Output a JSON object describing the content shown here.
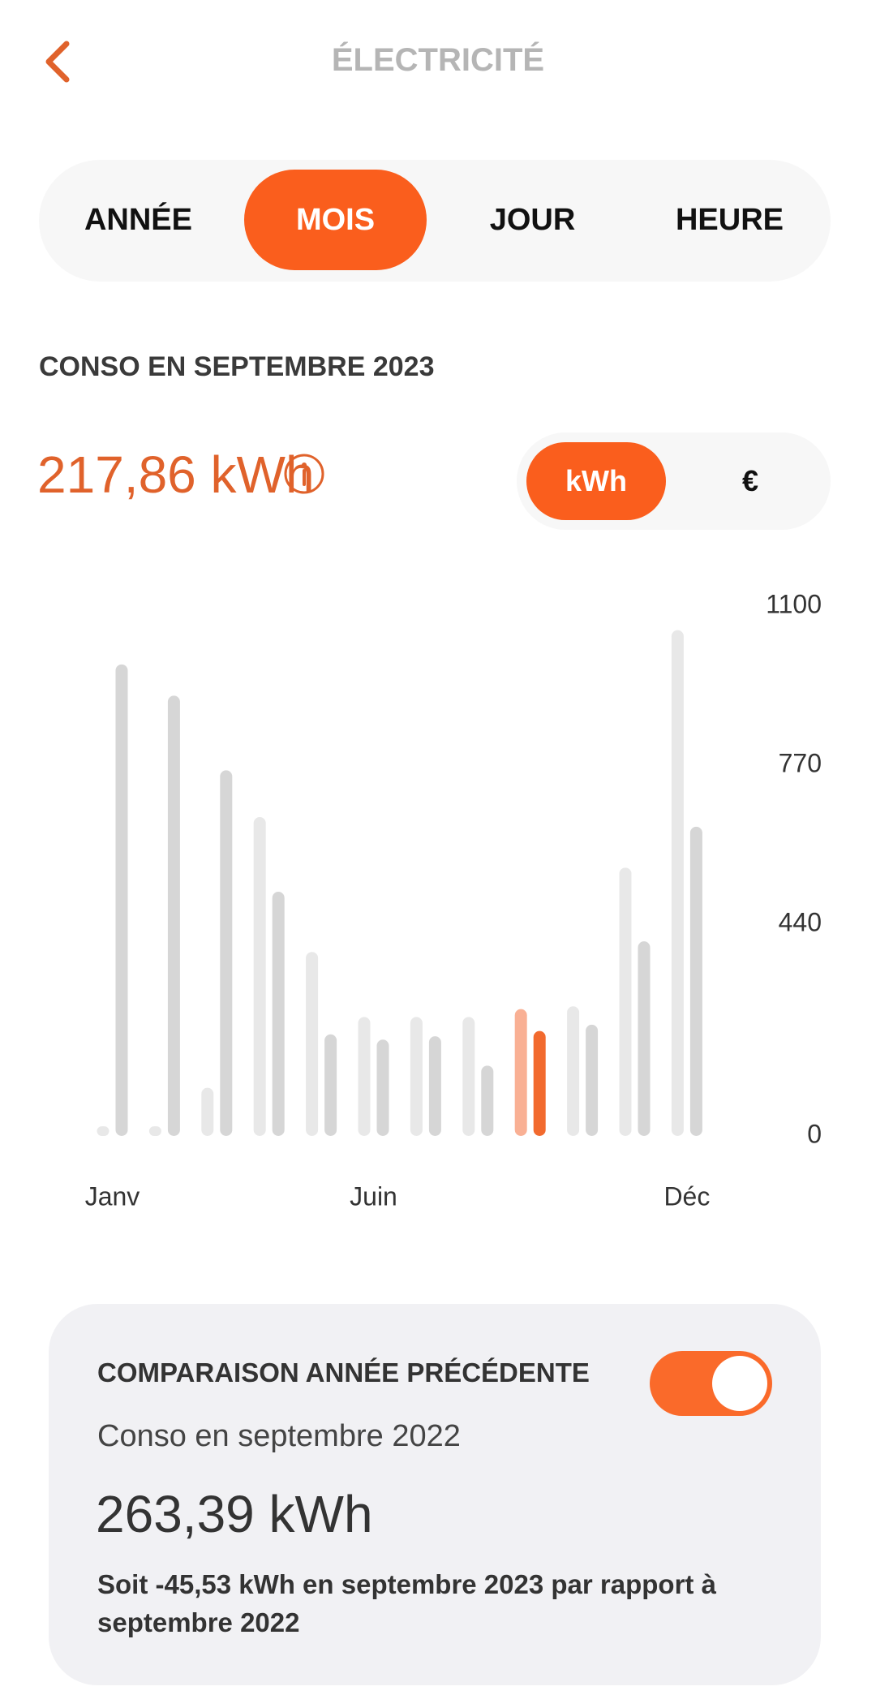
{
  "header": {
    "title": "ÉLECTRICITÉ"
  },
  "tabs": {
    "items": [
      "ANNÉE",
      "MOIS",
      "JOUR",
      "HEURE"
    ],
    "active_index": 1
  },
  "consumption": {
    "label": "CONSO EN SEPTEMBRE 2023",
    "value": "217,86 kWh"
  },
  "units": {
    "items": [
      "kWh",
      "€"
    ],
    "active_index": 0
  },
  "chart_data": {
    "type": "bar",
    "categories": [
      "Janv",
      null,
      null,
      null,
      null,
      "Juin",
      null,
      null,
      null,
      null,
      null,
      "Déc"
    ],
    "series": [
      {
        "color": "#e8e8e8",
        "highlight_color": "#f9b094",
        "values": [
          20,
          20,
          100,
          662,
          382,
          247,
          247,
          247,
          263.39,
          269,
          557,
          1050
        ]
      },
      {
        "color": "#d6d6d6",
        "highlight_color": "#f26a2e",
        "values": [
          979,
          914,
          759,
          507,
          211,
          200,
          207,
          146,
          217.86,
          231,
          404,
          642
        ]
      }
    ],
    "selected_index": 8,
    "ylim": [
      0,
      1100
    ],
    "yticks": [
      0,
      440,
      770,
      1100
    ],
    "y_axis_side": "right",
    "grid": false
  },
  "comparison": {
    "title": "COMPARAISON ANNÉE PRÉCÉDENTE",
    "enabled": true,
    "label": "Conso en septembre 2022",
    "value": "263,39 kWh",
    "text": "Soit -45,53 kWh en septembre 2023 par rapport à septembre 2022"
  }
}
